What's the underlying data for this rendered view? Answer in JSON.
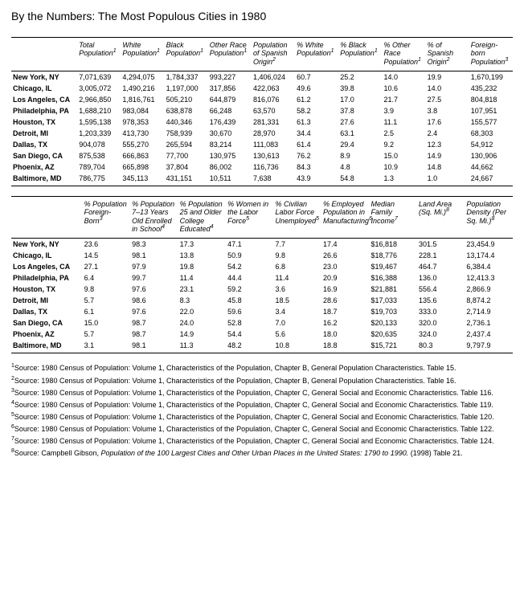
{
  "title": "By the Numbers: The Most Populous Cities in 1980",
  "t1": {
    "headers": [
      "",
      "Total Population",
      "White Population",
      "Black Population",
      "Other Race Population",
      "Population of Spanish Origin",
      "% White Population",
      "% Black Population",
      "% Other Race Population",
      "% of Spanish Origin",
      "Foreign-born Population"
    ],
    "sups": [
      "",
      "1",
      "1",
      "1",
      "1",
      "2",
      "1",
      "1",
      "1",
      "2",
      "3"
    ],
    "rows": [
      [
        "New York, NY",
        "7,071,639",
        "4,294,075",
        "1,784,337",
        "993,227",
        "1,406,024",
        "60.7",
        "25.2",
        "14.0",
        "19.9",
        "1,670,199"
      ],
      [
        "Chicago, IL",
        "3,005,072",
        "1,490,216",
        "1,197,000",
        "317,856",
        "422,063",
        "49.6",
        "39.8",
        "10.6",
        "14.0",
        "435,232"
      ],
      [
        "Los Angeles, CA",
        "2,966,850",
        "1,816,761",
        "505,210",
        "644,879",
        "816,076",
        "61.2",
        "17.0",
        "21.7",
        "27.5",
        "804,818"
      ],
      [
        "Philadelphia, PA",
        "1,688,210",
        "983,084",
        "638,878",
        "66,248",
        "63,570",
        "58.2",
        "37.8",
        "3.9",
        "3.8",
        "107,951"
      ],
      [
        "Houston, TX",
        "1,595,138",
        "978,353",
        "440,346",
        "176,439",
        "281,331",
        "61.3",
        "27.6",
        "11.1",
        "17.6",
        "155,577"
      ],
      [
        "Detroit, MI",
        "1,203,339",
        "413,730",
        "758,939",
        "30,670",
        "28,970",
        "34.4",
        "63.1",
        "2.5",
        "2.4",
        "68,303"
      ],
      [
        "Dallas, TX",
        "904,078",
        "555,270",
        "265,594",
        "83,214",
        "111,083",
        "61.4",
        "29.4",
        "9.2",
        "12.3",
        "54,912"
      ],
      [
        "San Diego, CA",
        "875,538",
        "666,863",
        "77,700",
        "130,975",
        "130,613",
        "76.2",
        "8.9",
        "15.0",
        "14.9",
        "130,906"
      ],
      [
        "Phoenix, AZ",
        "789,704",
        "665,898",
        "37,804",
        "86,002",
        "116,736",
        "84.3",
        "4.8",
        "10.9",
        "14.8",
        "44,662"
      ],
      [
        "Baltimore, MD",
        "786,775",
        "345,113",
        "431,151",
        "10,511",
        "7,638",
        "43.9",
        "54.8",
        "1.3",
        "1.0",
        "24,667"
      ]
    ]
  },
  "t2": {
    "headers": [
      "",
      "% Population Foreign-Born",
      "% Population 7–13 Years Old Enrolled in School",
      "% Population 25 and Older College Educated",
      "% Women in the Labor Force",
      "% Civilian Labor Force Unemployed",
      "% Employed Population in Manufacturing",
      "Median Family Income",
      "Land Area (Sq. Mi.)",
      "Population Density (Per Sq. Mi.)"
    ],
    "sups": [
      "",
      "3",
      "4",
      "4",
      "5",
      "5",
      "6",
      "7",
      "8",
      "8"
    ],
    "rows": [
      [
        "New York, NY",
        "23.6",
        "98.3",
        "17.3",
        "47.1",
        "7.7",
        "17.4",
        "$16,818",
        "301.5",
        "23,454.9"
      ],
      [
        "Chicago, IL",
        "14.5",
        "98.1",
        "13.8",
        "50.9",
        "9.8",
        "26.6",
        "$18,776",
        "228.1",
        "13,174.4"
      ],
      [
        "Los Angeles, CA",
        "27.1",
        "97.9",
        "19.8",
        "54.2",
        "6.8",
        "23.0",
        "$19,467",
        "464.7",
        "6,384.4"
      ],
      [
        "Philadelphia, PA",
        "6.4",
        "99.7",
        "11.4",
        "44.4",
        "11.4",
        "20.9",
        "$16,388",
        "136.0",
        "12,413.3"
      ],
      [
        "Houston, TX",
        "9.8",
        "97.6",
        "23.1",
        "59.2",
        "3.6",
        "16.9",
        "$21,881",
        "556.4",
        "2,866.9"
      ],
      [
        "Detroit, MI",
        "5.7",
        "98.6",
        "8.3",
        "45.8",
        "18.5",
        "28.6",
        "$17,033",
        "135.6",
        "8,874.2"
      ],
      [
        "Dallas, TX",
        "6.1",
        "97.6",
        "22.0",
        "59.6",
        "3.4",
        "18.7",
        "$19,703",
        "333.0",
        "2,714.9"
      ],
      [
        "San Diego, CA",
        "15.0",
        "98.7",
        "24.0",
        "52.8",
        "7.0",
        "16.2",
        "$20,133",
        "320.0",
        "2,736.1"
      ],
      [
        "Phoenix, AZ",
        "5.7",
        "98.7",
        "14.9",
        "54.4",
        "5.6",
        "18.0",
        "$20,635",
        "324.0",
        "2,437.4"
      ],
      [
        "Baltimore, MD",
        "3.1",
        "98.1",
        "11.3",
        "48.2",
        "10.8",
        "18.8",
        "$15,721",
        "80.3",
        "9,797.9"
      ]
    ]
  },
  "footnotes": [
    {
      "n": "1",
      "t": "Source: 1980 Census of Population: Volume 1, Characteristics of the Population, Chapter B, General Population Characteristics. Table 15."
    },
    {
      "n": "2",
      "t": "Source: 1980 Census of Population: Volume 1, Characteristics of the Population, Chapter B, General Population Characteristics. Table 16."
    },
    {
      "n": "3",
      "t": "Source: 1980 Census of Population: Volume 1, Characteristics of the Population, Chapter C, General Social and Economic Characteristics. Table 116."
    },
    {
      "n": "4",
      "t": "Source: 1980 Census of Population: Volume 1, Characteristics of the Population, Chapter C, General Social and Economic Characteristics. Table 119."
    },
    {
      "n": "5",
      "t": "Source: 1980 Census of Population: Volume 1, Characteristics of the Population, Chapter C, General Social and Economic Characteristics. Table 120."
    },
    {
      "n": "6",
      "t": "Source: 1980 Census of Population: Volume 1, Characteristics of the Population, Chapter C, General Social and Economic Characteristics. Table 122."
    },
    {
      "n": "7",
      "t": "Source: 1980 Census of Population: Volume 1, Characteristics of the Population, Chapter C, General Social and Economic Characteristics. Table 124."
    },
    {
      "n": "8",
      "t": "Source: Campbell Gibson, <em>Population of the 100 Largest Cities and Other Urban Places in the United States: 1790 to 1990.</em> (1998) Table 21."
    }
  ]
}
